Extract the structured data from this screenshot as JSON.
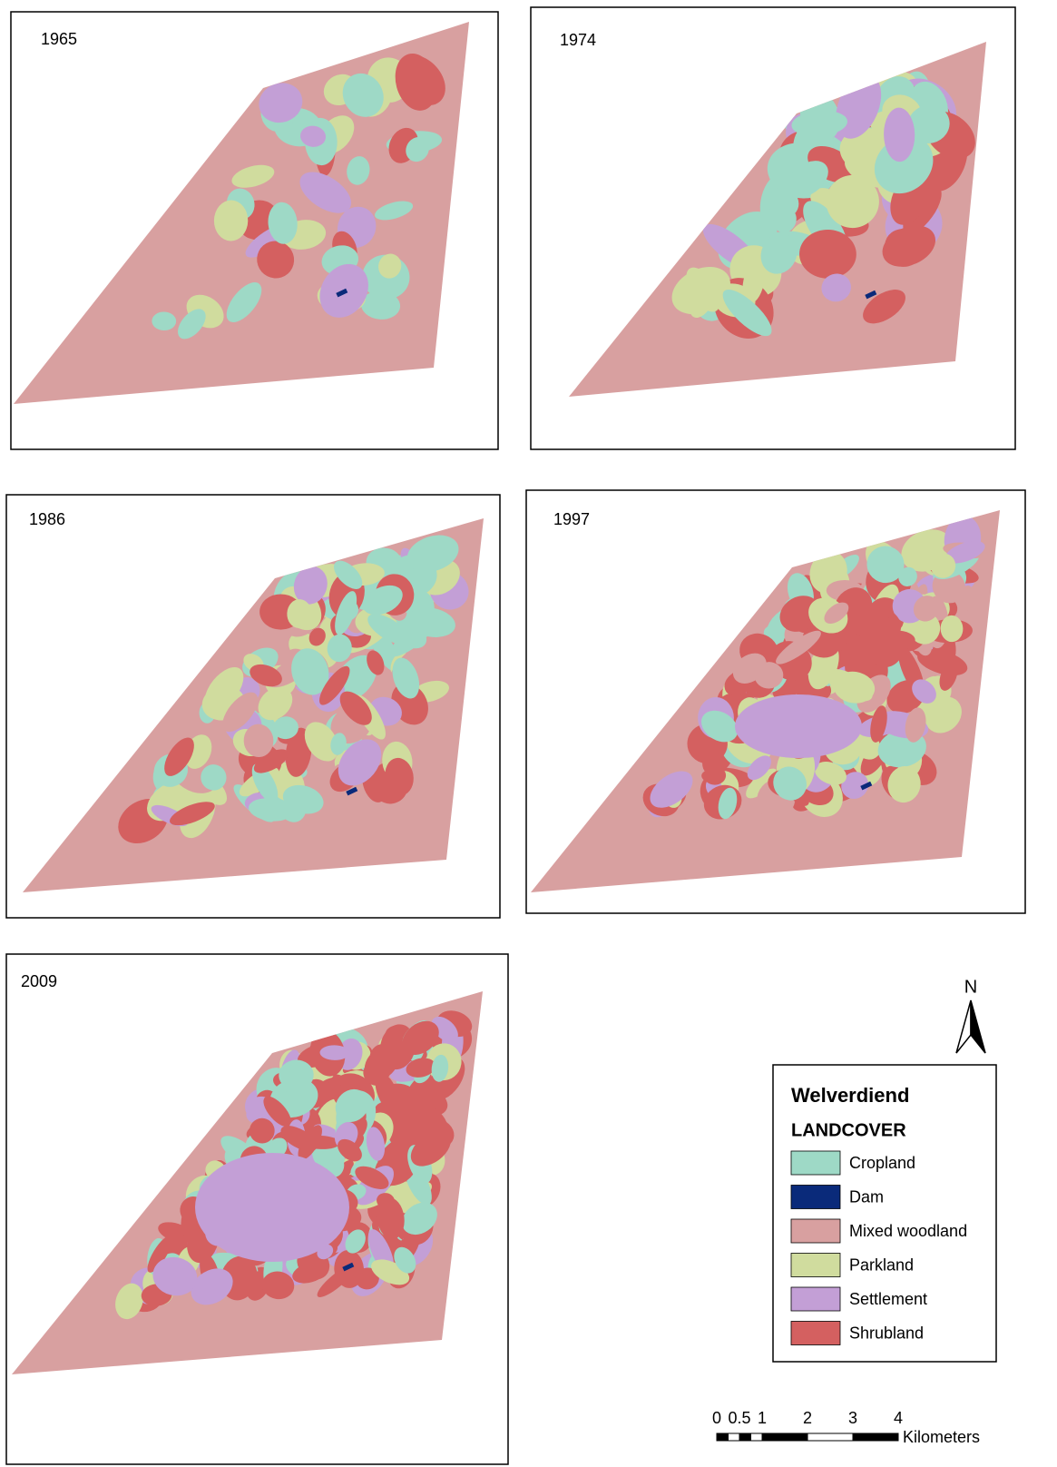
{
  "panels": [
    {
      "label": "1965"
    },
    {
      "label": "1974"
    },
    {
      "label": "1986"
    },
    {
      "label": "1997"
    },
    {
      "label": "2009"
    }
  ],
  "legend": {
    "title": "Welverdiend",
    "subtitle": "LANDCOVER",
    "items": [
      {
        "label": "Cropland",
        "color": "#9ed9c6"
      },
      {
        "label": "Dam",
        "color": "#0a2a7a"
      },
      {
        "label": "Mixed woodland",
        "color": "#d8a0a0"
      },
      {
        "label": "Parkland",
        "color": "#d0dc9e"
      },
      {
        "label": "Settlement",
        "color": "#c39fd6"
      },
      {
        "label": "Shrubland",
        "color": "#d46060"
      }
    ]
  },
  "north_arrow": {
    "label": "N"
  },
  "scale_bar": {
    "ticks": [
      0,
      0.5,
      1,
      2,
      3,
      4
    ],
    "unit": "Kilometers"
  }
}
